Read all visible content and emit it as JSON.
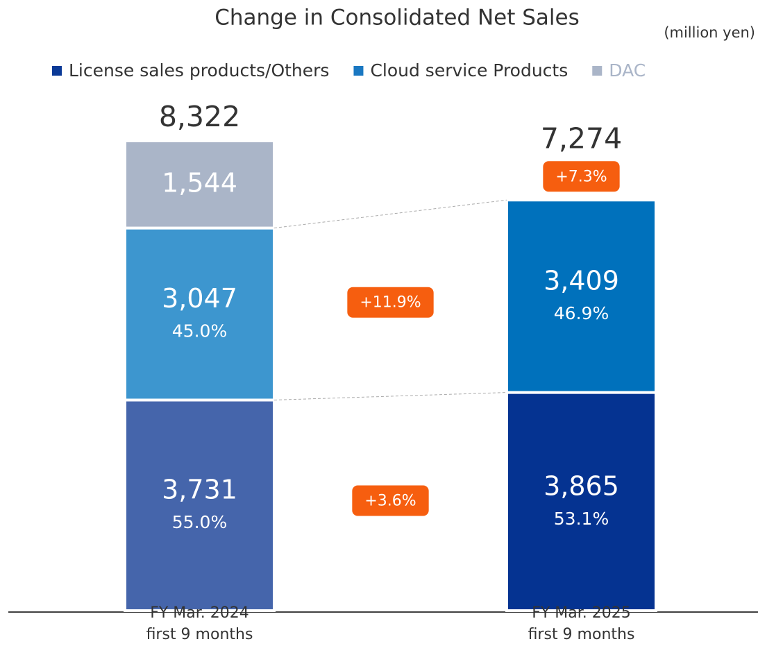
{
  "chart_data": {
    "type": "stacked-bar",
    "title": "Change in Consolidated Net Sales",
    "unit_label": "(million yen)",
    "categories": [
      "FY Mar. 2024\nfirst 9 months",
      "FY Mar. 2025\nfirst 9 months"
    ],
    "series": [
      {
        "name": "License sales products/Others",
        "color": "#0b3a97",
        "bar_colors": [
          "#4565ab",
          "#053391"
        ],
        "values": [
          3731,
          3865
        ],
        "value_labels": [
          "3,731",
          "3,865"
        ],
        "shares": [
          55.0,
          53.1
        ],
        "share_labels": [
          "55.0%",
          "53.1%"
        ],
        "growth": 3.6,
        "growth_label": "+3.6%"
      },
      {
        "name": "Cloud service Products",
        "color": "#1a78c2",
        "bar_colors": [
          "#3d96cf",
          "#0071bc"
        ],
        "values": [
          3047,
          3409
        ],
        "value_labels": [
          "3,047",
          "3,409"
        ],
        "shares": [
          45.0,
          46.9
        ],
        "share_labels": [
          "45.0%",
          "46.9%"
        ],
        "growth": 11.9,
        "growth_label": "+11.9%"
      },
      {
        "name": "DAC",
        "color": "#aab5c8",
        "bar_colors": [
          "#aab5c8",
          "#aab5c8"
        ],
        "values": [
          1544,
          null
        ],
        "value_labels": [
          "1,544",
          null
        ]
      }
    ],
    "totals": [
      8322,
      7274
    ],
    "total_labels": [
      "8,322",
      "7,274"
    ],
    "total_growth": 7.3,
    "total_growth_label": "+7.3%",
    "badge_color": "#f65e0f"
  }
}
